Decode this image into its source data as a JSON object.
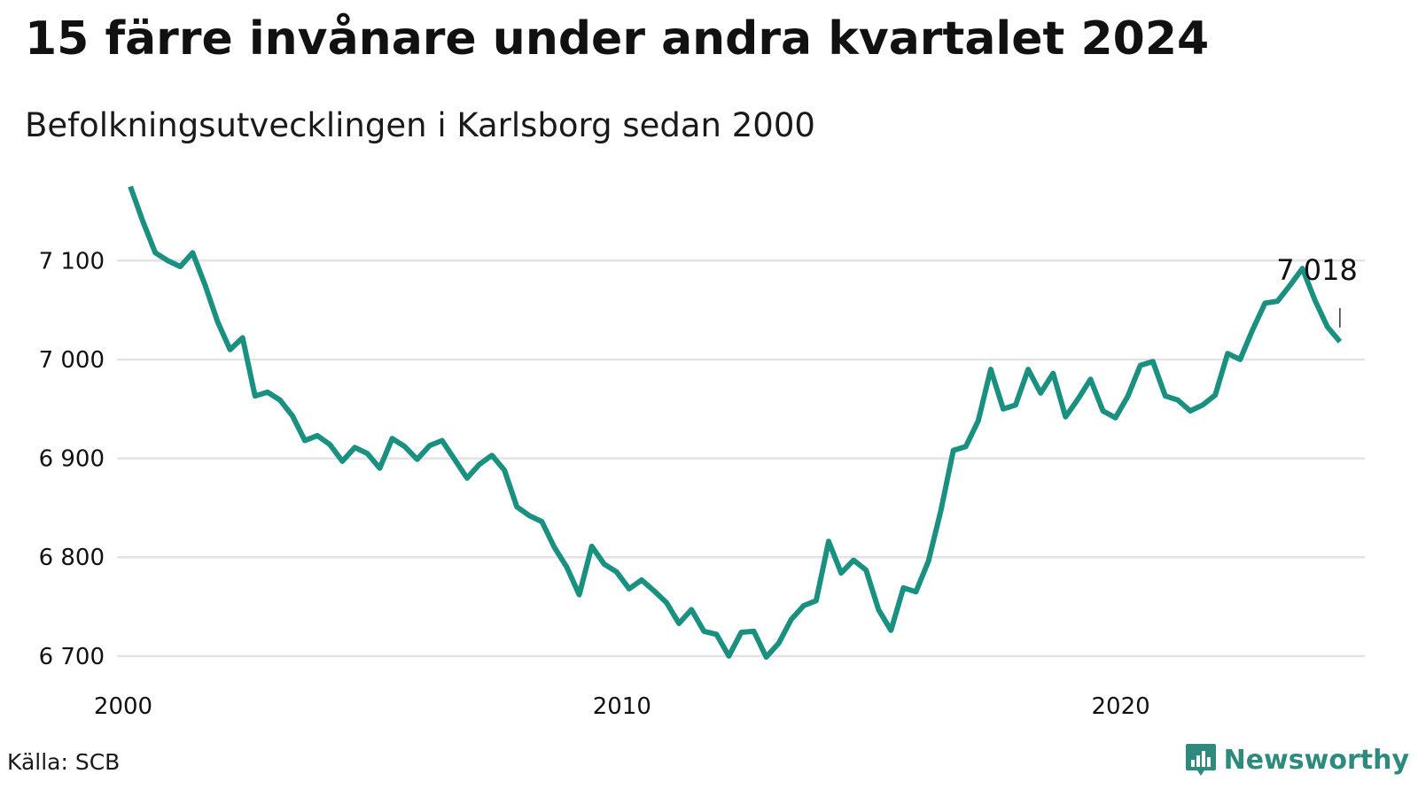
{
  "title": "15 färre invånare under andra kvartalet 2024",
  "subtitle": "Befolkningsutvecklingen i Karlsborg sedan 2000",
  "source": "Källa: SCB",
  "brand": "Newsworthy",
  "colors": {
    "line": "#1a9080",
    "grid": "#e3e3e3",
    "brand": "#2e8a7c"
  },
  "icons": {
    "brand_logo": "bar-chart-speech-bubble-icon"
  },
  "chart_data": {
    "type": "line",
    "title": "15 färre invånare under andra kvartalet 2024",
    "subtitle": "Befolkningsutvecklingen i Karlsborg sedan 2000",
    "xlabel": "",
    "ylabel": "",
    "xlim": [
      2000,
      2025
    ],
    "ylim": [
      6690,
      7180
    ],
    "y_ticks": [
      6700,
      6800,
      6900,
      7000,
      7100
    ],
    "y_tick_labels": [
      "6 700",
      "6 800",
      "6 900",
      "7 000",
      "7 100"
    ],
    "x_ticks": [
      2000,
      2010,
      2020
    ],
    "x_tick_labels": [
      "2000",
      "2010",
      "2020"
    ],
    "grid": "horizontal",
    "legend": "none",
    "end_label": "7 018",
    "series": [
      {
        "x": [
          2000.25,
          2000.5,
          2000.75,
          2001,
          2001.25,
          2001.5,
          2001.75,
          2002,
          2002.25,
          2002.5,
          2002.75,
          2003,
          2003.25,
          2003.5,
          2003.75,
          2004,
          2004.25,
          2004.5,
          2004.75,
          2005,
          2005.25,
          2005.5,
          2005.75,
          2006,
          2006.25,
          2006.5,
          2006.75,
          2007,
          2007.25,
          2007.5,
          2007.75,
          2008,
          2008.25,
          2008.5,
          2008.75,
          2009,
          2009.25,
          2009.5,
          2009.75,
          2010,
          2010.25,
          2010.5,
          2010.75,
          2011,
          2011.25,
          2011.5,
          2011.75,
          2012,
          2012.25,
          2012.5,
          2012.75,
          2013,
          2013.25,
          2013.5,
          2013.75,
          2014,
          2014.25,
          2014.5,
          2014.75,
          2015,
          2015.25,
          2015.5,
          2015.75,
          2016,
          2016.25,
          2016.5,
          2016.75,
          2017,
          2017.25,
          2017.5,
          2017.75,
          2018,
          2018.25,
          2018.5,
          2018.75,
          2019,
          2019.25,
          2019.5,
          2019.75,
          2020,
          2020.25,
          2020.5,
          2020.75,
          2021,
          2021.25,
          2021.5,
          2021.75,
          2022,
          2022.25,
          2022.5,
          2022.75,
          2023,
          2023.25,
          2023.5,
          2023.75,
          2024,
          2024.25,
          2024.5
        ],
        "y": [
          7175,
          7140,
          7108,
          7100,
          7094,
          7108,
          7075,
          7038,
          7010,
          7022,
          6963,
          6967,
          6959,
          6943,
          6918,
          6923,
          6914,
          6897,
          6911,
          6905,
          6890,
          6920,
          6912,
          6899,
          6913,
          6918,
          6899,
          6880,
          6894,
          6903,
          6888,
          6851,
          6842,
          6836,
          6810,
          6790,
          6762,
          6811,
          6793,
          6785,
          6768,
          6777,
          6766,
          6754,
          6733,
          6747,
          6725,
          6722,
          6700,
          6724,
          6725,
          6699,
          6713,
          6737,
          6751,
          6756,
          6816,
          6784,
          6797,
          6787,
          6747,
          6726,
          6769,
          6765,
          6796,
          6847,
          6908,
          6912,
          6938,
          6990,
          6950,
          6954,
          6990,
          6966,
          6986,
          6942,
          6960,
          6980,
          6948,
          6941,
          6963,
          6994,
          6998,
          6963,
          6959,
          6948,
          6954,
          6964,
          7006,
          7000,
          7030,
          7057,
          7059,
          7075,
          7092,
          7060,
          7033,
          7018
        ]
      }
    ]
  }
}
